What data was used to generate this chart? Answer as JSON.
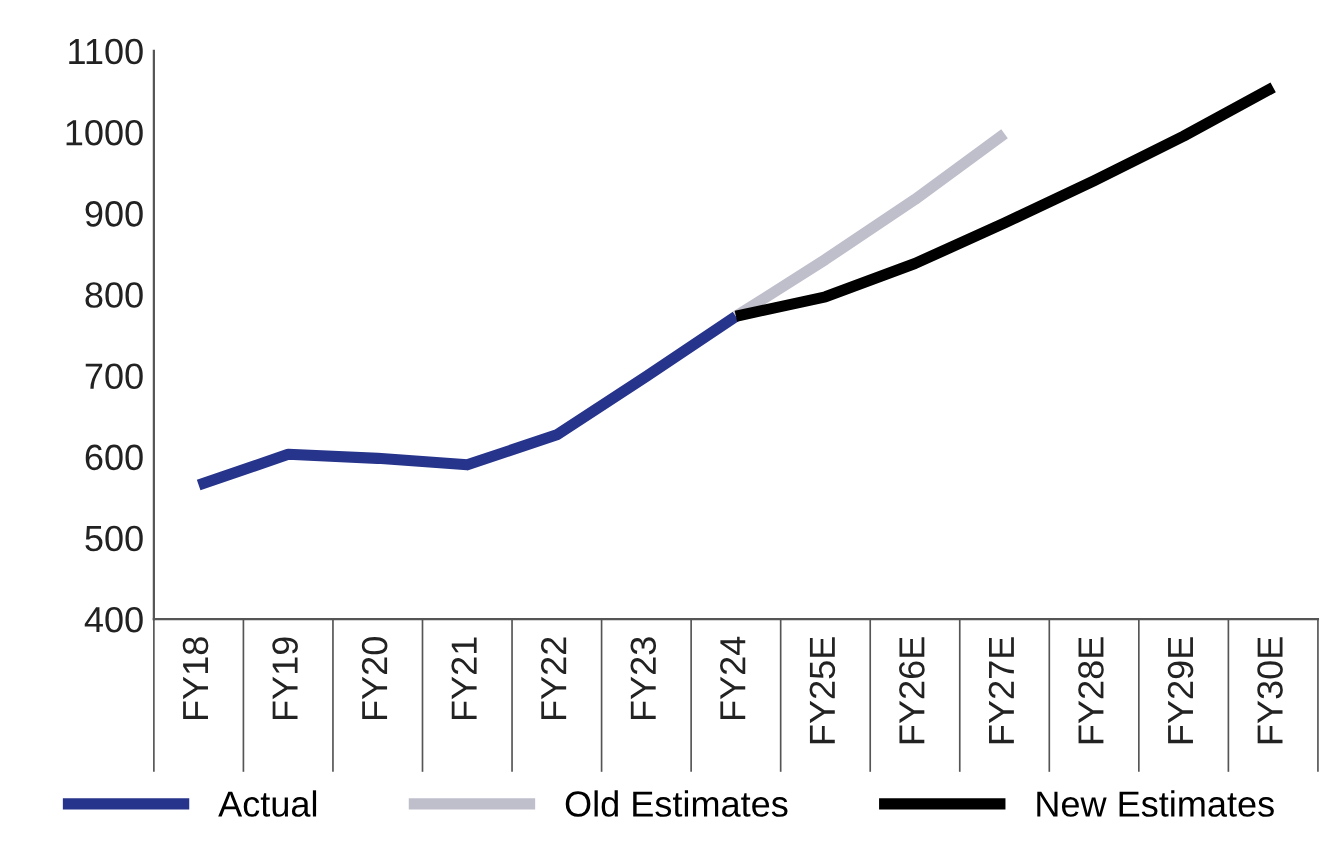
{
  "chart_data": {
    "type": "line",
    "categories": [
      "FY18",
      "FY19",
      "FY20",
      "FY21",
      "FY22",
      "FY23",
      "FY24",
      "FY25E",
      "FY26E",
      "FY27E",
      "FY28E",
      "FY29E",
      "FY30E"
    ],
    "series": [
      {
        "name": "Actual",
        "color": "#27348b",
        "values": [
          565,
          603,
          598,
          590,
          627,
          699,
          773,
          null,
          null,
          null,
          null,
          null,
          null
        ]
      },
      {
        "name": "Old Estimates",
        "color": "#bfbfcc",
        "values": [
          null,
          null,
          null,
          null,
          null,
          null,
          773,
          843,
          917,
          998,
          null,
          null,
          null
        ]
      },
      {
        "name": "New Estimates",
        "color": "#000000",
        "values": [
          null,
          null,
          null,
          null,
          null,
          null,
          773,
          797,
          838,
          888,
          940,
          995,
          1055
        ]
      }
    ],
    "ylim": [
      400,
      1100
    ],
    "yticks": [
      400,
      500,
      600,
      700,
      800,
      900,
      1000,
      1100
    ],
    "grid": false,
    "legend": "bottom",
    "line_style": "solid",
    "marker": "none"
  }
}
